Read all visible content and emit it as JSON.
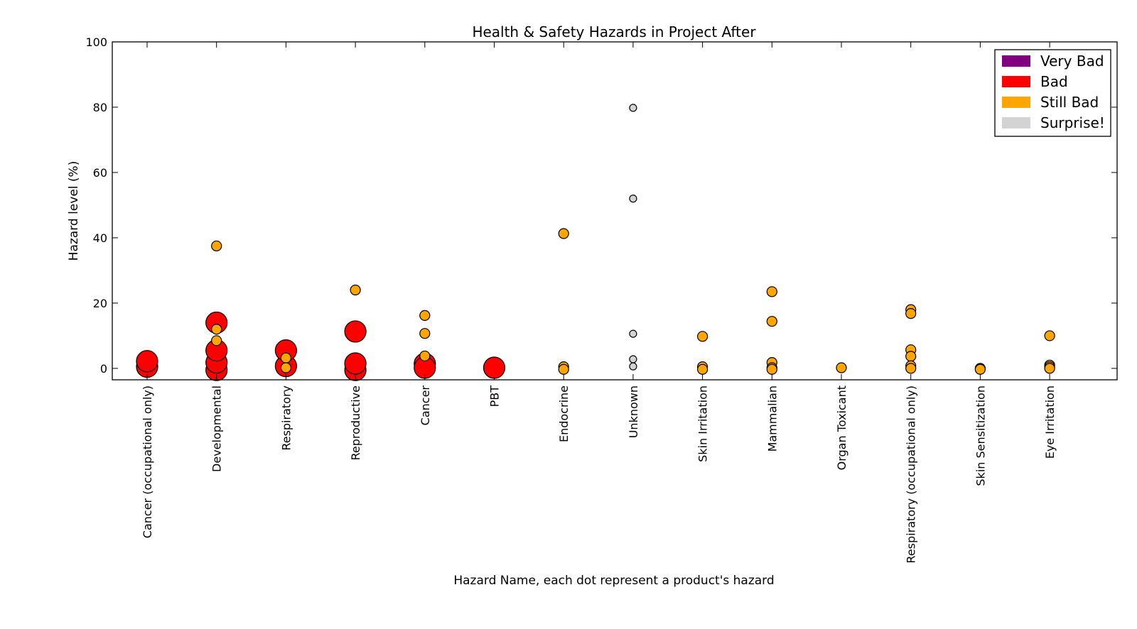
{
  "chart_data": {
    "type": "scatter",
    "title": "Health & Safety Hazards in Project After",
    "xlabel": "Hazard Name, each dot represent a product's hazard",
    "ylabel": "Hazard level (%)",
    "ylim": [
      -3.5,
      100
    ],
    "yticks": [
      0,
      20,
      40,
      60,
      80,
      100
    ],
    "categories": [
      "Cancer (occupational only)",
      "Developmental",
      "Respiratory",
      "Reproductive",
      "Cancer",
      "PBT",
      "Endocrine",
      "Unknown",
      "Skin Irritation",
      "Mammalian",
      "Organ Toxicant",
      "Respiratory (occupational only)",
      "Skin Sensitization",
      "Eye Irritation"
    ],
    "legend": {
      "position": "top-right",
      "entries": [
        {
          "label": "Very Bad",
          "color": "#800080"
        },
        {
          "label": "Bad",
          "color": "#ff0000"
        },
        {
          "label": "Still Bad",
          "color": "#ffa500"
        },
        {
          "label": "Surprise!",
          "color": "#d3d3d3"
        }
      ]
    },
    "series": [
      {
        "name": "Very Bad",
        "color": "#800080",
        "size": "xl",
        "points": []
      },
      {
        "name": "Bad",
        "color": "#ff0000",
        "size": "large",
        "points": [
          {
            "category": "Cancer (occupational only)",
            "y": 0.5
          },
          {
            "category": "Cancer (occupational only)",
            "y": 2.2
          },
          {
            "category": "Developmental",
            "y": -0.5
          },
          {
            "category": "Developmental",
            "y": 1.8
          },
          {
            "category": "Developmental",
            "y": 5.5
          },
          {
            "category": "Developmental",
            "y": 14.0
          },
          {
            "category": "Respiratory",
            "y": 0.7
          },
          {
            "category": "Respiratory",
            "y": 5.5
          },
          {
            "category": "Reproductive",
            "y": -0.5
          },
          {
            "category": "Reproductive",
            "y": 1.5
          },
          {
            "category": "Reproductive",
            "y": 11.3
          },
          {
            "category": "Cancer",
            "y": 1.4
          },
          {
            "category": "Cancer",
            "y": 0.2
          },
          {
            "category": "PBT",
            "y": 0.2
          }
        ]
      },
      {
        "name": "Still Bad",
        "color": "#ffa500",
        "size": "medium",
        "points": [
          {
            "category": "Developmental",
            "y": 37.5
          },
          {
            "category": "Developmental",
            "y": 12.0
          },
          {
            "category": "Developmental",
            "y": 8.5
          },
          {
            "category": "Respiratory",
            "y": 3.2
          },
          {
            "category": "Respiratory",
            "y": 0.2
          },
          {
            "category": "Reproductive",
            "y": 24.0
          },
          {
            "category": "Cancer",
            "y": 16.2
          },
          {
            "category": "Cancer",
            "y": 10.7
          },
          {
            "category": "Cancer",
            "y": 3.8
          },
          {
            "category": "Endocrine",
            "y": 41.3
          },
          {
            "category": "Endocrine",
            "y": 0.5
          },
          {
            "category": "Endocrine",
            "y": -0.3
          },
          {
            "category": "Skin Irritation",
            "y": 9.8
          },
          {
            "category": "Skin Irritation",
            "y": 0.5
          },
          {
            "category": "Skin Irritation",
            "y": -0.3
          },
          {
            "category": "Mammalian",
            "y": 23.5
          },
          {
            "category": "Mammalian",
            "y": 14.4
          },
          {
            "category": "Mammalian",
            "y": 1.8
          },
          {
            "category": "Mammalian",
            "y": 0.2
          },
          {
            "category": "Mammalian",
            "y": -0.3
          },
          {
            "category": "Organ Toxicant",
            "y": 0.2
          },
          {
            "category": "Respiratory (occupational only)",
            "y": 18.0
          },
          {
            "category": "Respiratory (occupational only)",
            "y": 16.8
          },
          {
            "category": "Respiratory (occupational only)",
            "y": 5.7
          },
          {
            "category": "Respiratory (occupational only)",
            "y": 3.7
          },
          {
            "category": "Respiratory (occupational only)",
            "y": 0.8
          },
          {
            "category": "Respiratory (occupational only)",
            "y": 0.0
          },
          {
            "category": "Skin Sensitization",
            "y": 0.0
          },
          {
            "category": "Skin Sensitization",
            "y": -0.3
          },
          {
            "category": "Eye Irritation",
            "y": 10.0
          },
          {
            "category": "Eye Irritation",
            "y": 1.0
          },
          {
            "category": "Eye Irritation",
            "y": 0.5
          },
          {
            "category": "Eye Irritation",
            "y": 0.0
          }
        ]
      },
      {
        "name": "Surprise!",
        "color": "#d3d3d3",
        "size": "small",
        "points": [
          {
            "category": "Unknown",
            "y": 79.8
          },
          {
            "category": "Unknown",
            "y": 52.0
          },
          {
            "category": "Unknown",
            "y": 10.6
          },
          {
            "category": "Unknown",
            "y": 2.8
          },
          {
            "category": "Unknown",
            "y": 0.6
          }
        ]
      }
    ]
  }
}
